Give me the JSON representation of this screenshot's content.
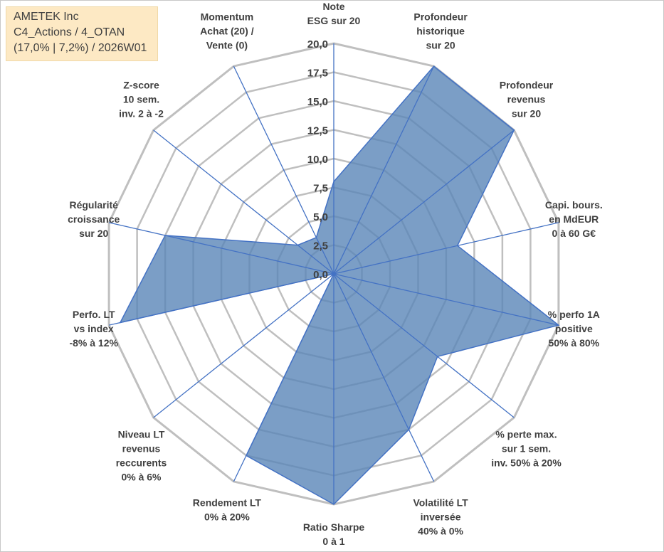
{
  "info_box": {
    "line1": "AMETEK Inc",
    "line2": "C4_Actions / 4_OTAN",
    "line3": "(17,0% | 7,2%) / 2026W01"
  },
  "colors": {
    "fill": "#5a86b8",
    "stroke": "#4472c4",
    "grid": "#bfbfbf",
    "text": "#404040",
    "info_bg": "#fde9c4"
  },
  "chart_data": {
    "type": "radar",
    "rmax": 20,
    "ticks": [
      "0,0",
      "2,5",
      "5,0",
      "7,5",
      "10,0",
      "12,5",
      "15,0",
      "17,5",
      "20,0"
    ],
    "tick_values": [
      0,
      2.5,
      5,
      7.5,
      10,
      12.5,
      15,
      17.5,
      20
    ],
    "axes": [
      {
        "lines": [
          "Note",
          "ESG sur 20"
        ],
        "value": 8
      },
      {
        "lines": [
          "Profondeur",
          "historique",
          "sur 20"
        ],
        "value": 20
      },
      {
        "lines": [
          "Profondeur",
          "revenus",
          "sur 20"
        ],
        "value": 20
      },
      {
        "lines": [
          "Capi. bours.",
          "en MdEUR",
          "0 à 60 G€"
        ],
        "value": 11
      },
      {
        "lines": [
          "% perfo 1A",
          "positive",
          "50% à 80%"
        ],
        "value": 20
      },
      {
        "lines": [
          "% perte max.",
          "sur 1 sem.",
          "inv. 50% à 20%"
        ],
        "value": 11.5
      },
      {
        "lines": [
          "Volatilité LT",
          "inversée",
          "40% à 0%"
        ],
        "value": 15
      },
      {
        "lines": [
          "Ratio Sharpe",
          "0 à 1"
        ],
        "value": 20
      },
      {
        "lines": [
          "Rendement LT",
          "0% à 20%"
        ],
        "value": 17.5
      },
      {
        "lines": [
          "Niveau LT",
          "revenus",
          "reccurents",
          "0% à 6%"
        ],
        "value": 0
      },
      {
        "lines": [
          "Perfo. LT",
          "vs index",
          "-8% à 12%"
        ],
        "value": 19
      },
      {
        "lines": [
          "Régularité",
          "croissance",
          "sur 20"
        ],
        "value": 15
      },
      {
        "lines": [
          "Z-score",
          "10 sem.",
          "inv. 2 à -2"
        ],
        "value": 4
      },
      {
        "lines": [
          "Momentum",
          "Achat (20) /",
          "Vente (0)"
        ],
        "value": 3.5
      }
    ]
  }
}
